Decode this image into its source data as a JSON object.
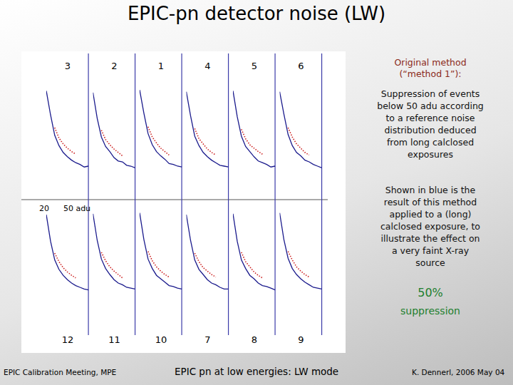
{
  "slide": {
    "title": "EPIC-pn detector noise (LW)",
    "method_heading": [
      "Original method",
      "(“method 1”):"
    ],
    "method_text": [
      "Suppression of events",
      "below 50 adu according",
      "to a reference noise",
      "distribution deduced",
      "from long calclosed",
      "exposures"
    ],
    "blue_text": [
      "Shown in blue is the",
      "result of this method",
      "applied to a (long)",
      "calclosed exposure, to",
      "illustrate the effect on",
      "a very faint X-ray",
      "source"
    ],
    "percent": "50%",
    "percent_label": "suppression",
    "annotations": [
      "20",
      "50 adu"
    ],
    "footer": {
      "left": "EPIC Calibration Meeting, MPE",
      "center": "EPIC pn at low energies: LW mode",
      "right": "K. Dennerl, 2006 May 04"
    }
  },
  "chart_data": [
    {
      "type": "line",
      "title": "3",
      "x": [
        20,
        23,
        26,
        29,
        32,
        35,
        38,
        41,
        44,
        47,
        50
      ],
      "xlim": [
        20,
        52
      ],
      "ylim": [
        0,
        100
      ],
      "threshold": 50,
      "tick_labels": false,
      "series": [
        {
          "color": "#cc2222",
          "line_style": "dotted",
          "values": [
            null,
            null,
            55,
            43,
            36,
            31,
            27,
            24,
            null,
            null,
            null
          ]
        },
        {
          "color": "#1a1a8c",
          "line_style": "solid",
          "values": [
            98,
            70,
            46,
            34,
            26,
            21,
            17,
            14,
            12,
            9,
            10
          ]
        }
      ]
    },
    {
      "type": "line",
      "title": "2",
      "x": [
        20,
        23,
        26,
        29,
        32,
        35,
        38,
        41,
        44,
        47,
        50
      ],
      "xlim": [
        20,
        52
      ],
      "ylim": [
        0,
        100
      ],
      "threshold": 50,
      "tick_labels": false,
      "series": [
        {
          "color": "#cc2222",
          "line_style": "dotted",
          "values": [
            null,
            null,
            52,
            41,
            35,
            30,
            26,
            22,
            null,
            null,
            null
          ]
        },
        {
          "color": "#1a1a8c",
          "line_style": "solid",
          "values": [
            96,
            66,
            44,
            33,
            27,
            20,
            16,
            15,
            11,
            10,
            8
          ]
        }
      ]
    },
    {
      "type": "line",
      "title": "1",
      "x": [
        20,
        23,
        26,
        29,
        32,
        35,
        38,
        41,
        44,
        47,
        50
      ],
      "xlim": [
        20,
        52
      ],
      "ylim": [
        0,
        100
      ],
      "threshold": 50,
      "tick_labels": false,
      "series": [
        {
          "color": "#cc2222",
          "line_style": "dotted",
          "values": [
            null,
            null,
            56,
            44,
            37,
            31,
            27,
            23,
            null,
            null,
            null
          ]
        },
        {
          "color": "#1a1a8c",
          "line_style": "solid",
          "values": [
            99,
            72,
            48,
            35,
            27,
            22,
            18,
            13,
            12,
            10,
            9
          ]
        }
      ]
    },
    {
      "type": "line",
      "title": "4",
      "x": [
        20,
        23,
        26,
        29,
        32,
        35,
        38,
        41,
        44,
        47,
        50
      ],
      "xlim": [
        20,
        52
      ],
      "ylim": [
        0,
        100
      ],
      "threshold": 50,
      "tick_labels": false,
      "series": [
        {
          "color": "#cc2222",
          "line_style": "dotted",
          "values": [
            null,
            null,
            54,
            42,
            36,
            30,
            26,
            23,
            null,
            null,
            null
          ]
        },
        {
          "color": "#1a1a8c",
          "line_style": "solid",
          "values": [
            97,
            69,
            45,
            34,
            26,
            21,
            17,
            14,
            11,
            10,
            9
          ]
        }
      ]
    },
    {
      "type": "line",
      "title": "5",
      "x": [
        20,
        23,
        26,
        29,
        32,
        35,
        38,
        41,
        44,
        47,
        50
      ],
      "xlim": [
        20,
        52
      ],
      "ylim": [
        0,
        100
      ],
      "threshold": 50,
      "tick_labels": false,
      "series": [
        {
          "color": "#cc2222",
          "line_style": "dotted",
          "values": [
            null,
            null,
            53,
            42,
            35,
            31,
            27,
            24,
            null,
            null,
            null
          ]
        },
        {
          "color": "#1a1a8c",
          "line_style": "solid",
          "values": [
            98,
            68,
            45,
            33,
            27,
            21,
            16,
            14,
            12,
            9,
            10
          ]
        }
      ]
    },
    {
      "type": "line",
      "title": "6",
      "x": [
        20,
        23,
        26,
        29,
        32,
        35,
        38,
        41,
        44,
        47,
        50
      ],
      "xlim": [
        20,
        52
      ],
      "ylim": [
        0,
        100
      ],
      "threshold": 50,
      "tick_labels": false,
      "series": [
        {
          "color": "#cc2222",
          "line_style": "dotted",
          "values": [
            null,
            null,
            55,
            44,
            36,
            31,
            26,
            23,
            null,
            null,
            null
          ]
        },
        {
          "color": "#1a1a8c",
          "line_style": "solid",
          "values": [
            97,
            71,
            47,
            34,
            26,
            22,
            17,
            15,
            12,
            10,
            8
          ]
        }
      ]
    },
    {
      "type": "line",
      "title": "12",
      "x": [
        20,
        23,
        26,
        29,
        32,
        35,
        38,
        41,
        44,
        47,
        50
      ],
      "xlim": [
        20,
        52
      ],
      "ylim": [
        0,
        100
      ],
      "threshold": 50,
      "tick_labels": false,
      "series": [
        {
          "color": "#cc2222",
          "line_style": "dotted",
          "values": [
            null,
            null,
            50,
            40,
            33,
            28,
            24,
            21,
            null,
            null,
            null
          ]
        },
        {
          "color": "#1a1a8c",
          "line_style": "solid",
          "values": [
            95,
            64,
            42,
            31,
            24,
            19,
            15,
            12,
            10,
            8,
            7
          ]
        }
      ]
    },
    {
      "type": "line",
      "title": "11",
      "x": [
        20,
        23,
        26,
        29,
        32,
        35,
        38,
        41,
        44,
        47,
        50
      ],
      "xlim": [
        20,
        52
      ],
      "ylim": [
        0,
        100
      ],
      "threshold": 50,
      "tick_labels": false,
      "series": [
        {
          "color": "#cc2222",
          "line_style": "dotted",
          "values": [
            null,
            null,
            51,
            41,
            34,
            29,
            25,
            21,
            null,
            null,
            null
          ]
        },
        {
          "color": "#1a1a8c",
          "line_style": "solid",
          "values": [
            96,
            65,
            43,
            32,
            25,
            19,
            15,
            13,
            10,
            9,
            8
          ]
        }
      ]
    },
    {
      "type": "line",
      "title": "10",
      "x": [
        20,
        23,
        26,
        29,
        32,
        35,
        38,
        41,
        44,
        47,
        50
      ],
      "xlim": [
        20,
        52
      ],
      "ylim": [
        0,
        100
      ],
      "threshold": 50,
      "tick_labels": false,
      "series": [
        {
          "color": "#cc2222",
          "line_style": "dotted",
          "values": [
            null,
            null,
            52,
            41,
            34,
            29,
            25,
            22,
            null,
            null,
            null
          ]
        },
        {
          "color": "#1a1a8c",
          "line_style": "solid",
          "values": [
            97,
            66,
            43,
            32,
            24,
            20,
            16,
            12,
            11,
            9,
            8
          ]
        }
      ]
    },
    {
      "type": "line",
      "title": "7",
      "x": [
        20,
        23,
        26,
        29,
        32,
        35,
        38,
        41,
        44,
        47,
        50
      ],
      "xlim": [
        20,
        52
      ],
      "ylim": [
        0,
        100
      ],
      "threshold": 50,
      "tick_labels": false,
      "series": [
        {
          "color": "#cc2222",
          "line_style": "dotted",
          "values": [
            null,
            null,
            50,
            40,
            33,
            29,
            25,
            22,
            null,
            null,
            null
          ]
        },
        {
          "color": "#1a1a8c",
          "line_style": "solid",
          "values": [
            95,
            65,
            42,
            31,
            25,
            19,
            15,
            13,
            10,
            8,
            8
          ]
        }
      ]
    },
    {
      "type": "line",
      "title": "8",
      "x": [
        20,
        23,
        26,
        29,
        32,
        35,
        38,
        41,
        44,
        47,
        50
      ],
      "xlim": [
        20,
        52
      ],
      "ylim": [
        0,
        100
      ],
      "threshold": 50,
      "tick_labels": false,
      "series": [
        {
          "color": "#cc2222",
          "line_style": "dotted",
          "values": [
            null,
            null,
            51,
            40,
            34,
            28,
            24,
            21,
            null,
            null,
            null
          ]
        },
        {
          "color": "#1a1a8c",
          "line_style": "solid",
          "values": [
            96,
            64,
            42,
            32,
            24,
            20,
            15,
            12,
            11,
            9,
            7
          ]
        }
      ]
    },
    {
      "type": "line",
      "title": "9",
      "x": [
        20,
        23,
        26,
        29,
        32,
        35,
        38,
        41,
        44,
        47,
        50
      ],
      "xlim": [
        20,
        52
      ],
      "ylim": [
        0,
        100
      ],
      "threshold": 50,
      "tick_labels": false,
      "series": [
        {
          "color": "#cc2222",
          "line_style": "dotted",
          "values": [
            null,
            null,
            52,
            42,
            34,
            29,
            25,
            22,
            null,
            null,
            null
          ]
        },
        {
          "color": "#1a1a8c",
          "line_style": "solid",
          "values": [
            97,
            66,
            44,
            32,
            25,
            20,
            16,
            13,
            10,
            9,
            8
          ]
        }
      ]
    }
  ]
}
